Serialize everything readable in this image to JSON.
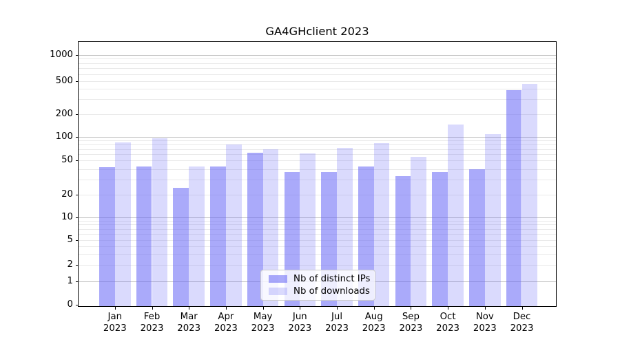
{
  "chart_data": {
    "type": "bar",
    "title": "GA4GHclient 2023",
    "categories": [
      "Jan 2023",
      "Feb 2023",
      "Mar 2023",
      "Apr 2023",
      "May 2023",
      "Jun 2023",
      "Jul 2023",
      "Aug 2023",
      "Sep 2023",
      "Oct 2023",
      "Nov 2023",
      "Dec 2023"
    ],
    "series": [
      {
        "name": "Nb of distinct IPs",
        "color": "rgba(100,100,245,0.55)",
        "solid_hex": "#aaaaf9",
        "values": [
          42,
          43,
          24,
          43,
          63,
          37,
          37,
          43,
          33,
          37,
          40,
          385
        ]
      },
      {
        "name": "Nb of downloads",
        "color": "rgba(100,100,245,0.24)",
        "solid_hex": "#dadcfb",
        "values": [
          84,
          95,
          43,
          80,
          70,
          62,
          72,
          83,
          56,
          146,
          107,
          460
        ]
      }
    ],
    "yscale": "symlog",
    "ylim": [
      0,
      1400
    ],
    "y_ticks": [
      0,
      1,
      2,
      5,
      10,
      20,
      50,
      100,
      200,
      500,
      1000
    ],
    "xlabel": "",
    "ylabel": "",
    "grid": true,
    "legend_position": "lower center"
  },
  "colors": {
    "major_grid": "#c2c2c2",
    "minor_grid": "#e9e9e9",
    "spine": "#000000",
    "text": "#000000",
    "legend_border": "#cbcbcb",
    "legend_background": "rgba(255,255,255,0.8)",
    "figure_background": "#ffffff"
  }
}
